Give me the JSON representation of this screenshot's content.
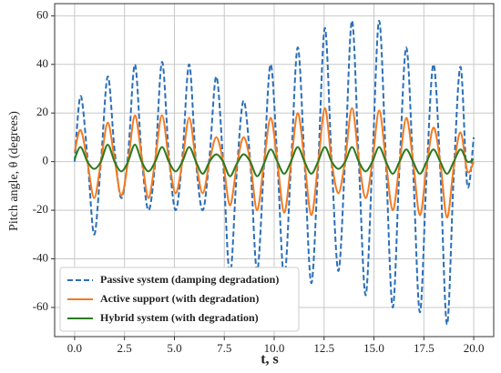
{
  "chart_data": {
    "type": "line",
    "x_label": "t, s",
    "y_label": "Pitch angle, θ (degrees)",
    "x": [
      0,
      0.3,
      0.64,
      0.98,
      1.32,
      1.66,
      2.0,
      2.34,
      2.68,
      3.02,
      3.36,
      3.7,
      4.04,
      4.38,
      4.72,
      5.06,
      5.4,
      5.74,
      6.08,
      6.42,
      6.76,
      7.1,
      7.44,
      7.78,
      8.12,
      8.46,
      8.8,
      9.14,
      9.48,
      9.82,
      10.16,
      10.5,
      10.84,
      11.18,
      11.52,
      11.86,
      12.2,
      12.54,
      12.88,
      13.22,
      13.56,
      13.9,
      14.24,
      14.58,
      14.92,
      15.26,
      15.6,
      15.94,
      16.28,
      16.62,
      16.96,
      17.3,
      17.64,
      17.98,
      18.32,
      18.66,
      19.0,
      19.34,
      19.68,
      20.0
    ],
    "series": [
      {
        "name": "Passive system (damping degradation)",
        "color": "#2a6fba",
        "dash": true,
        "values": [
          0,
          27,
          2,
          -30,
          0,
          35,
          5,
          -15,
          3,
          40,
          2,
          -20,
          0,
          41,
          3,
          -20,
          2,
          40,
          0,
          -20,
          2,
          35,
          0,
          -47,
          -5,
          25,
          0,
          -45,
          -3,
          40,
          0,
          -48,
          -2,
          47,
          0,
          -50,
          -2,
          55,
          0,
          -45,
          2,
          58,
          0,
          -55,
          0,
          58,
          0,
          -60,
          -2,
          47,
          -3,
          -62,
          -5,
          40,
          -3,
          -67,
          -5,
          39,
          -10,
          10
        ]
      },
      {
        "name": "Active support (with degradation)",
        "color": "#f47a20",
        "dash": false,
        "values": [
          4,
          13,
          0,
          -15,
          0,
          16,
          1,
          -14,
          0,
          19,
          2,
          -15,
          1,
          19,
          1,
          -13,
          0,
          18,
          0,
          -13,
          0,
          10,
          0,
          -18,
          -2,
          10,
          0,
          -20,
          -1,
          18,
          0,
          -21,
          -1,
          20,
          0,
          -22,
          -1,
          22,
          0,
          -13,
          1,
          22,
          1,
          -15,
          0,
          21,
          0,
          -20,
          -1,
          18,
          0,
          -22,
          -2,
          14,
          0,
          -23,
          -2,
          12,
          -4,
          0
        ]
      },
      {
        "name": "Hybrid system (with degradation)",
        "color": "#2a7a1e",
        "dash": false,
        "values": [
          1,
          6,
          0,
          -3,
          0,
          7,
          0,
          -4,
          0,
          7,
          0,
          -4,
          0,
          6,
          0,
          -4,
          0,
          6,
          0,
          -5,
          0,
          3,
          0,
          -6,
          -1,
          3,
          0,
          -6,
          -1,
          5,
          0,
          -5,
          0,
          6,
          0,
          -5,
          0,
          6,
          0,
          -3,
          0,
          6,
          0,
          -4,
          0,
          6,
          0,
          -5,
          0,
          5,
          0,
          -5,
          0,
          5,
          0,
          -5,
          0,
          5,
          0,
          1
        ]
      }
    ],
    "xlim": [
      -1,
      21
    ],
    "ylim": [
      -72,
      65
    ],
    "xticks": [
      {
        "value": 0,
        "label": "0.0"
      },
      {
        "value": 2.5,
        "label": "2.5"
      },
      {
        "value": 5,
        "label": "5.0"
      },
      {
        "value": 7.5,
        "label": "7.5"
      },
      {
        "value": 10,
        "label": "10.0"
      },
      {
        "value": 12.5,
        "label": "12.5"
      },
      {
        "value": 15,
        "label": "15.0"
      },
      {
        "value": 17.5,
        "label": "17.5"
      },
      {
        "value": 20,
        "label": "20.0"
      }
    ],
    "yticks": [
      -60,
      -40,
      -20,
      0,
      20,
      40,
      60
    ],
    "grid": true,
    "legend": "lower left"
  }
}
